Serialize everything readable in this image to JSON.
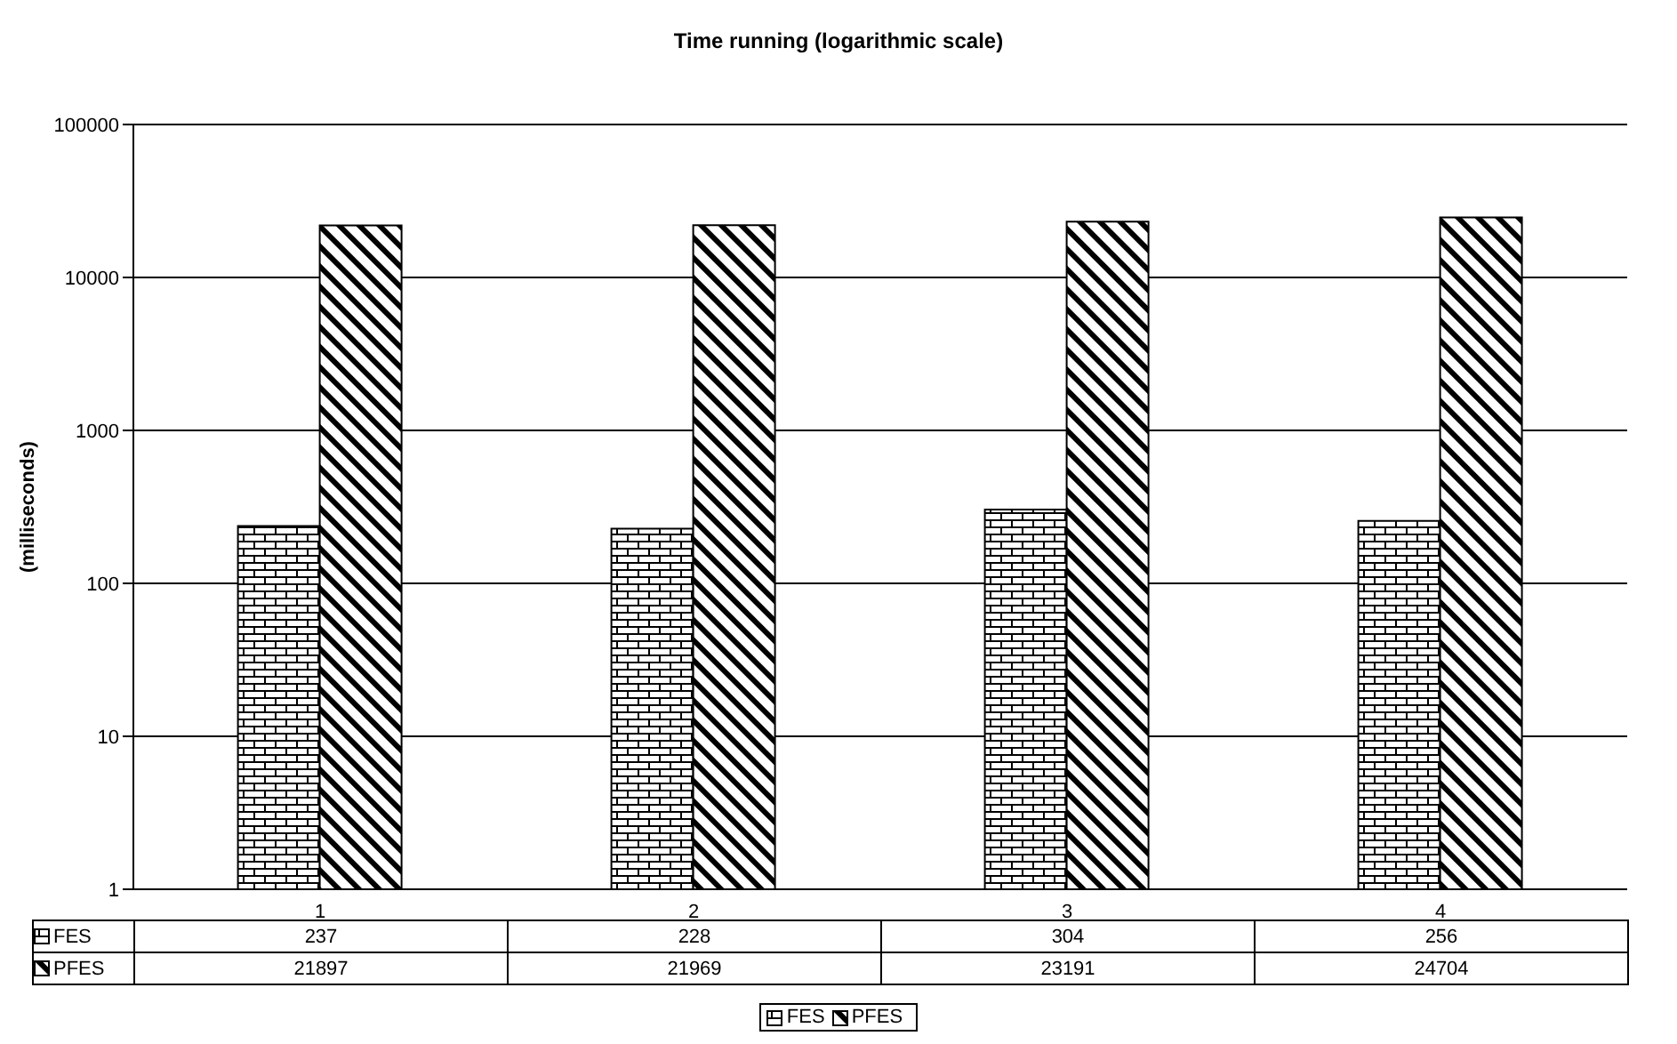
{
  "chart_data": {
    "type": "bar",
    "title": "Time running (logarithmic scale)",
    "ylabel": "(milliseconds)",
    "categories": [
      "1",
      "2",
      "3",
      "4"
    ],
    "series": [
      {
        "name": "FES",
        "color": "#000000",
        "values": [
          237,
          228,
          304,
          256
        ]
      },
      {
        "name": "PFES",
        "color": "#000000",
        "values": [
          21897,
          21969,
          23191,
          24704
        ]
      }
    ],
    "log": true,
    "ylim": [
      1,
      100000
    ],
    "yticks": [
      1,
      10,
      100,
      1000,
      10000,
      100000
    ],
    "grid": "y",
    "legend": "bottom",
    "data_labels": true
  }
}
